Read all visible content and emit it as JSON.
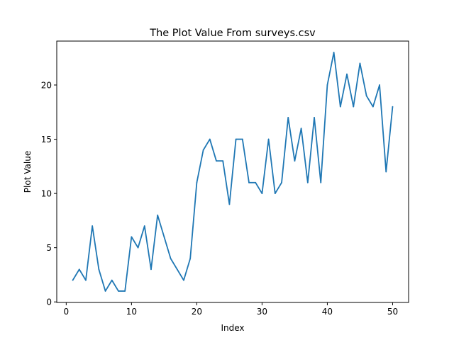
{
  "chart_data": {
    "type": "line",
    "title": "The Plot Value From surveys.csv",
    "xlabel": "Index",
    "ylabel": "Plot Value",
    "xlim": [
      -1.45,
      52.45
    ],
    "ylim": [
      -0.05,
      24.05
    ],
    "xticks": [
      0,
      10,
      20,
      30,
      40,
      50
    ],
    "yticks": [
      0,
      5,
      10,
      15,
      20
    ],
    "grid": false,
    "line_color": "#1f77b4",
    "series": [
      {
        "x": [
          1,
          2,
          3,
          4,
          5,
          6,
          7,
          8,
          9,
          10,
          11,
          12,
          13,
          14,
          15,
          16,
          17,
          18,
          19,
          20,
          21,
          22,
          23,
          24,
          25,
          26,
          27,
          28,
          29,
          30,
          31,
          32,
          33,
          34,
          35,
          36,
          37,
          38,
          39,
          40,
          41,
          42,
          43,
          44,
          45,
          46,
          47,
          48,
          49,
          50
        ],
        "values": [
          2,
          3,
          2,
          7,
          3,
          1,
          2,
          1,
          1,
          6,
          5,
          7,
          3,
          8,
          6,
          4,
          3,
          2,
          4,
          11,
          14,
          15,
          13,
          13,
          9,
          15,
          15,
          11,
          11,
          10,
          15,
          10,
          11,
          17,
          13,
          16,
          11,
          17,
          11,
          20,
          23,
          18,
          21,
          18,
          22,
          19,
          18,
          20,
          12,
          18
        ]
      }
    ]
  }
}
